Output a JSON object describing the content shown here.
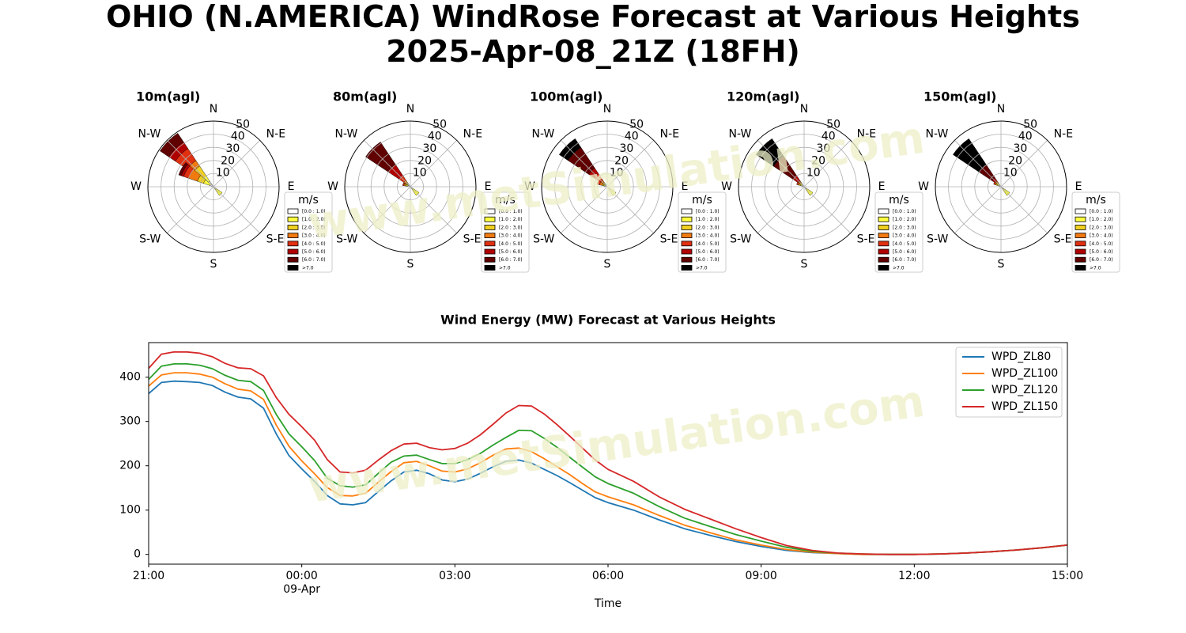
{
  "title": {
    "line1": "OHIO (N.AMERICA) WindRose Forecast at Various Heights",
    "line2": "2025-Apr-08_21Z (18FH)"
  },
  "watermark": "www.metSimulation.com",
  "colors": {
    "bins": [
      "#ffffff",
      "#ffff40",
      "#f0d020",
      "#f07a10",
      "#e03010",
      "#b00000",
      "#600000",
      "#000000"
    ],
    "series": [
      "#1f77b4",
      "#ff7f0e",
      "#2ca02c",
      "#d62728"
    ],
    "watermark": "#eef0c8"
  },
  "chart_data": [
    {
      "type": "windrose",
      "title": "10m(agl)",
      "directions": [
        "N",
        "N-E",
        "E",
        "S-E",
        "S",
        "S-W",
        "W",
        "N-W"
      ],
      "r_ticks": [
        10,
        20,
        30,
        40,
        50
      ],
      "legend": {
        "title": "m/s",
        "labels": [
          "[0.0 : 1.0)",
          "[1.0 : 2.0)",
          "[2.0 : 3.0)",
          "[3.0 : 4.0)",
          "[4.0 : 5.0)",
          "[5.0 : 6.0)",
          "[6.0 : 7.0)",
          ">7.0"
        ]
      },
      "petals": [
        {
          "direction_deg": 315,
          "cumulative": [
            0,
            5,
            10,
            19,
            24,
            35,
            41,
            49,
            49
          ]
        },
        {
          "direction_deg": 300,
          "cumulative": [
            0,
            3,
            8,
            13,
            20,
            24,
            26,
            28,
            28
          ]
        },
        {
          "direction_deg": 135,
          "cumulative": [
            0,
            2,
            8,
            8,
            8,
            8,
            8,
            8,
            8
          ]
        }
      ]
    },
    {
      "type": "windrose",
      "title": "80m(agl)",
      "directions": [
        "N",
        "N-E",
        "E",
        "S-E",
        "S",
        "S-W",
        "W",
        "N-W"
      ],
      "r_ticks": [
        10,
        20,
        30,
        40,
        50
      ],
      "legend": {
        "title": "m/s",
        "labels": [
          "[0.0 : 1.0)",
          "[1.0 : 2.0)",
          "[2.0 : 3.0)",
          "[3.0 : 4.0)",
          "[4.0 : 5.0)",
          "[5.0 : 6.0)",
          "[6.0 : 7.0)",
          ">7.0"
        ]
      },
      "petals": [
        {
          "direction_deg": 315,
          "cumulative": [
            0,
            2,
            3,
            4,
            6,
            10,
            20,
            41,
            41
          ]
        },
        {
          "direction_deg": 290,
          "cumulative": [
            0,
            2,
            3,
            4,
            5,
            6,
            6,
            6,
            6
          ]
        },
        {
          "direction_deg": 135,
          "cumulative": [
            0,
            2,
            8,
            8,
            8,
            8,
            8,
            8,
            8
          ]
        }
      ]
    },
    {
      "type": "windrose",
      "title": "100m(agl)",
      "directions": [
        "N",
        "N-E",
        "E",
        "S-E",
        "S",
        "S-W",
        "W",
        "N-W"
      ],
      "r_ticks": [
        10,
        20,
        30,
        40,
        50
      ],
      "legend": {
        "title": "m/s",
        "labels": [
          "[0.0 : 1.0)",
          "[1.0 : 2.0)",
          "[2.0 : 3.0)",
          "[3.0 : 4.0)",
          "[4.0 : 5.0)",
          "[5.0 : 6.0)",
          "[6.0 : 7.0)",
          ">7.0"
        ]
      },
      "petals": [
        {
          "direction_deg": 315,
          "cumulative": [
            0,
            2,
            3,
            4,
            6,
            12,
            17,
            36,
            44
          ]
        },
        {
          "direction_deg": 295,
          "cumulative": [
            0,
            2,
            3,
            4,
            6,
            8,
            8,
            8,
            8
          ]
        },
        {
          "direction_deg": 135,
          "cumulative": [
            0,
            2,
            8,
            8,
            8,
            8,
            8,
            8,
            8
          ]
        }
      ]
    },
    {
      "type": "windrose",
      "title": "120m(agl)",
      "directions": [
        "N",
        "N-E",
        "E",
        "S-E",
        "S",
        "S-W",
        "W",
        "N-W"
      ],
      "r_ticks": [
        10,
        20,
        30,
        40,
        50
      ],
      "legend": {
        "title": "m/s",
        "labels": [
          "[0.0 : 1.0)",
          "[1.0 : 2.0)",
          "[2.0 : 3.0)",
          "[3.0 : 4.0)",
          "[4.0 : 5.0)",
          "[5.0 : 6.0)",
          "[6.0 : 7.0)",
          ">7.0"
        ]
      },
      "petals": [
        {
          "direction_deg": 315,
          "cumulative": [
            0,
            2,
            3,
            4,
            5,
            6,
            10,
            28,
            44
          ]
        },
        {
          "direction_deg": 298,
          "cumulative": [
            0,
            2,
            3,
            4,
            5,
            6,
            6,
            6,
            6
          ]
        },
        {
          "direction_deg": 135,
          "cumulative": [
            0,
            2,
            8,
            8,
            8,
            8,
            8,
            8,
            8
          ]
        }
      ]
    },
    {
      "type": "windrose",
      "title": "150m(agl)",
      "directions": [
        "N",
        "N-E",
        "E",
        "S-E",
        "S",
        "S-W",
        "W",
        "N-W"
      ],
      "r_ticks": [
        10,
        20,
        30,
        40,
        50
      ],
      "legend": {
        "title": "m/s",
        "labels": [
          "[0.0 : 1.0)",
          "[1.0 : 2.0)",
          "[2.0 : 3.0)",
          "[3.0 : 4.0)",
          "[4.0 : 5.0)",
          "[5.0 : 6.0)",
          "[6.0 : 7.0)",
          ">7.0"
        ]
      },
      "petals": [
        {
          "direction_deg": 315,
          "cumulative": [
            0,
            2,
            3,
            4,
            5,
            6,
            8,
            20,
            44
          ]
        },
        {
          "direction_deg": 300,
          "cumulative": [
            0,
            2,
            3,
            4,
            5,
            6,
            6,
            6,
            6
          ]
        },
        {
          "direction_deg": 135,
          "cumulative": [
            0,
            2,
            8,
            8,
            8,
            8,
            8,
            8,
            8
          ]
        }
      ]
    },
    {
      "type": "line",
      "title": "Wind Energy (MW) Forecast at Various Heights",
      "xlabel": "Time",
      "ylabel": "",
      "x_unit": "hours since 2025-04-08 21:00",
      "xlim": [
        0,
        18
      ],
      "ylim": [
        -22,
        478
      ],
      "x_ticks": [
        {
          "x": 0,
          "label": "21:00",
          "sublabel": ""
        },
        {
          "x": 3,
          "label": "00:00",
          "sublabel": "09-Apr"
        },
        {
          "x": 6,
          "label": "03:00",
          "sublabel": ""
        },
        {
          "x": 9,
          "label": "06:00",
          "sublabel": ""
        },
        {
          "x": 12,
          "label": "09:00",
          "sublabel": ""
        },
        {
          "x": 15,
          "label": "12:00",
          "sublabel": ""
        },
        {
          "x": 18,
          "label": "15:00",
          "sublabel": ""
        }
      ],
      "y_ticks": [
        0,
        100,
        200,
        300,
        400
      ],
      "legend_position": "upper-right",
      "x": [
        0,
        0.25,
        0.5,
        0.75,
        1,
        1.25,
        1.5,
        1.75,
        2,
        2.25,
        2.5,
        2.75,
        3,
        3.25,
        3.5,
        3.75,
        4,
        4.25,
        4.5,
        4.75,
        5,
        5.25,
        5.5,
        5.75,
        6,
        6.25,
        6.5,
        6.75,
        7,
        7.25,
        7.5,
        7.75,
        8,
        8.25,
        8.5,
        8.75,
        9,
        9.5,
        10,
        10.5,
        11,
        11.5,
        12,
        12.5,
        13,
        13.5,
        14,
        14.5,
        15,
        15.5,
        16,
        16.5,
        17,
        17.5,
        18
      ],
      "series": [
        {
          "name": "WPD_ZL80",
          "values": [
            363,
            388,
            391,
            390,
            388,
            381,
            366,
            355,
            351,
            330,
            272,
            223,
            193,
            165,
            133,
            114,
            112,
            117,
            142,
            166,
            186,
            190,
            182,
            168,
            164,
            170,
            183,
            198,
            210,
            213,
            206,
            192,
            178,
            162,
            145,
            128,
            117,
            100,
            78,
            58,
            43,
            29,
            18,
            9,
            4,
            2,
            0,
            0,
            0,
            1,
            3,
            6,
            10,
            15,
            21
          ]
        },
        {
          "name": "WPD_ZL100",
          "values": [
            380,
            405,
            410,
            410,
            407,
            400,
            385,
            373,
            369,
            350,
            292,
            244,
            211,
            182,
            151,
            133,
            132,
            138,
            163,
            187,
            207,
            210,
            200,
            188,
            186,
            193,
            207,
            224,
            238,
            240,
            232,
            216,
            198,
            180,
            160,
            141,
            130,
            112,
            88,
            66,
            49,
            33,
            21,
            11,
            5,
            2,
            0,
            0,
            0,
            1,
            3,
            6,
            10,
            15,
            21
          ]
        },
        {
          "name": "WPD_ZL120",
          "values": [
            395,
            425,
            430,
            430,
            427,
            419,
            404,
            393,
            390,
            370,
            316,
            272,
            243,
            212,
            172,
            155,
            152,
            157,
            183,
            208,
            222,
            224,
            214,
            205,
            205,
            214,
            228,
            247,
            264,
            280,
            279,
            262,
            242,
            219,
            197,
            175,
            160,
            138,
            108,
            82,
            63,
            45,
            30,
            16,
            7,
            3,
            1,
            0,
            0,
            1,
            3,
            6,
            10,
            15,
            21
          ]
        },
        {
          "name": "WPD_ZL150",
          "values": [
            420,
            452,
            457,
            457,
            454,
            446,
            431,
            421,
            419,
            403,
            354,
            316,
            288,
            258,
            214,
            186,
            184,
            190,
            213,
            234,
            249,
            251,
            241,
            236,
            239,
            251,
            270,
            294,
            319,
            336,
            335,
            317,
            293,
            267,
            240,
            213,
            192,
            165,
            130,
            102,
            80,
            58,
            38,
            20,
            9,
            3,
            1,
            0,
            0,
            1,
            3,
            6,
            10,
            15,
            21
          ]
        }
      ]
    }
  ]
}
